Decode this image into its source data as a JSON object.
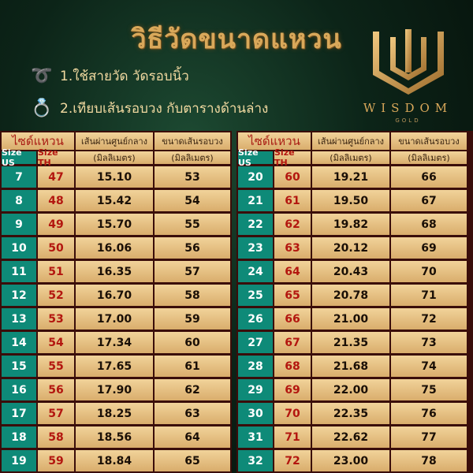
{
  "title": "วิธีวัดขนาดแหวน",
  "steps": [
    {
      "icon": "tape-measure-icon",
      "text": "1.ใช้สายวัด วัดรอบนิ้ว"
    },
    {
      "icon": "ring-icon",
      "text": "2.เทียบเส้นรอบวง กับตารางด้านล่าง"
    }
  ],
  "logo": {
    "brand": "WISDOM",
    "sub": "GOLD"
  },
  "headers": {
    "size": "ไซด์แหวน",
    "diameter": "เส้นผ่านศูนย์กลาง",
    "circumference": "ขนาดเส้นรอบวง",
    "unit": "(มิลลิเมตร)",
    "us": "Size US",
    "th": "Size TH"
  },
  "colors": {
    "gold": "#d9a85a",
    "teal": "#0e8a78",
    "red": "#b3160f",
    "maroon": "#3a0d0a"
  },
  "left_rows": [
    [
      "7",
      "47",
      "15.10",
      "53"
    ],
    [
      "8",
      "48",
      "15.42",
      "54"
    ],
    [
      "9",
      "49",
      "15.70",
      "55"
    ],
    [
      "10",
      "50",
      "16.06",
      "56"
    ],
    [
      "11",
      "51",
      "16.35",
      "57"
    ],
    [
      "12",
      "52",
      "16.70",
      "58"
    ],
    [
      "13",
      "53",
      "17.00",
      "59"
    ],
    [
      "14",
      "54",
      "17.34",
      "60"
    ],
    [
      "15",
      "55",
      "17.65",
      "61"
    ],
    [
      "16",
      "56",
      "17.90",
      "62"
    ],
    [
      "17",
      "57",
      "18.25",
      "63"
    ],
    [
      "18",
      "58",
      "18.56",
      "64"
    ],
    [
      "19",
      "59",
      "18.84",
      "65"
    ]
  ],
  "right_rows": [
    [
      "20",
      "60",
      "19.21",
      "66"
    ],
    [
      "21",
      "61",
      "19.50",
      "67"
    ],
    [
      "22",
      "62",
      "19.82",
      "68"
    ],
    [
      "23",
      "63",
      "20.12",
      "69"
    ],
    [
      "24",
      "64",
      "20.43",
      "70"
    ],
    [
      "25",
      "65",
      "20.78",
      "71"
    ],
    [
      "26",
      "66",
      "21.00",
      "72"
    ],
    [
      "27",
      "67",
      "21.35",
      "73"
    ],
    [
      "28",
      "68",
      "21.68",
      "74"
    ],
    [
      "29",
      "69",
      "22.00",
      "75"
    ],
    [
      "30",
      "70",
      "22.35",
      "76"
    ],
    [
      "31",
      "71",
      "22.62",
      "77"
    ],
    [
      "32",
      "72",
      "23.00",
      "78"
    ]
  ]
}
